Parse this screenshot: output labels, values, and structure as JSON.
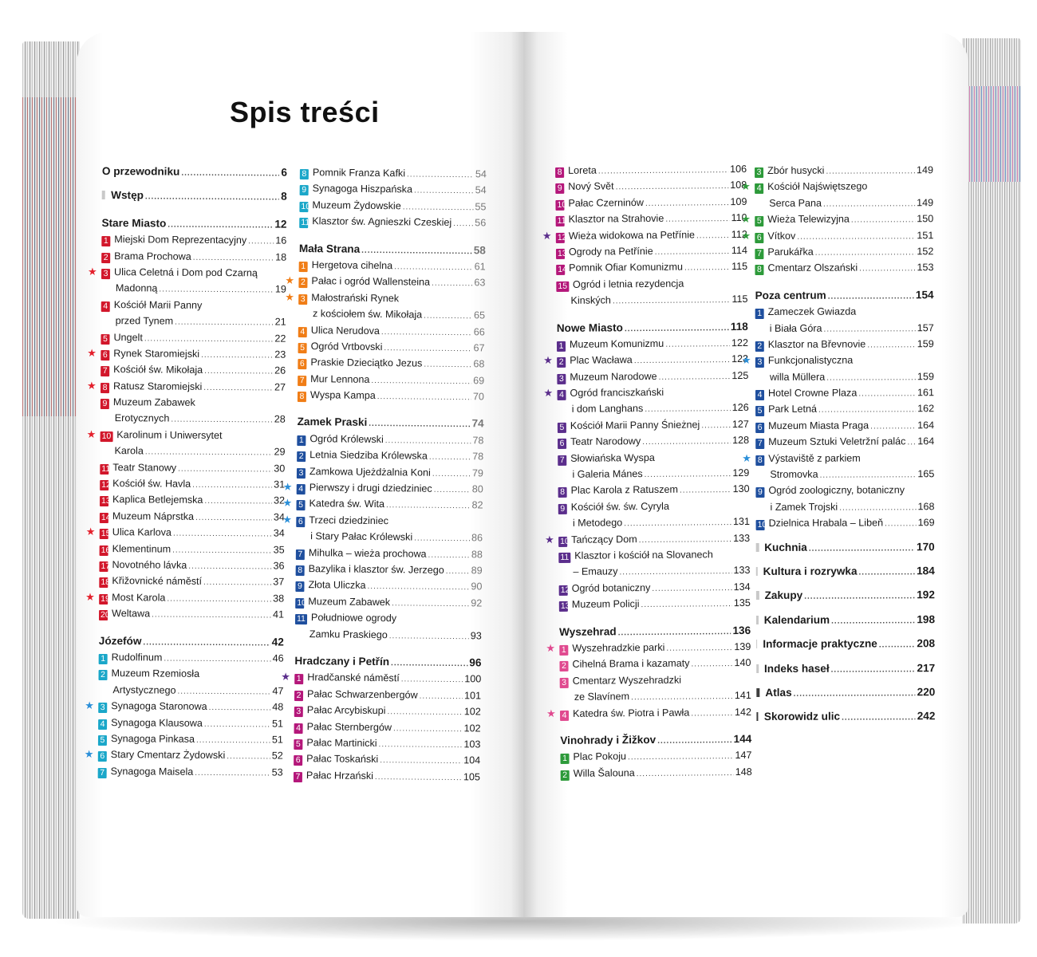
{
  "title": "Spis treści",
  "colors": {
    "red": "#d2172b",
    "teal": "#1aa7c9",
    "orange": "#f07d16",
    "blue": "#1f4f9e",
    "purple": "#5b2e8c",
    "magenta": "#b4177a",
    "pink": "#e0498f",
    "green": "#2d9a3a",
    "star_red": "#e4202c",
    "star_blue": "#2b8fd8",
    "star_orange": "#f07d16",
    "star_purple": "#5b2e8c",
    "star_pink": "#e0498f",
    "star_green": "#2d9a3a",
    "square_light": "#c9c9c9",
    "square_dark": "#3d3d3d"
  },
  "columns": [
    {
      "entries": [
        {
          "kind": "sec",
          "square": "none",
          "label": "O przewodniku",
          "page": "6"
        },
        {
          "kind": "sec",
          "square": "light",
          "label": "Wstęp",
          "page": "8"
        },
        {
          "kind": "chap",
          "label": "Stare Miasto",
          "page": "12"
        },
        {
          "num": "1",
          "color": "red",
          "label": "Miejski Dom Reprezentacyjny",
          "page": "16"
        },
        {
          "num": "2",
          "color": "red",
          "label": "Brama Prochowa",
          "page": "18"
        },
        {
          "num": "3",
          "color": "red",
          "star": "star_red",
          "label": "Ulica Celetná i Dom pod Czarną",
          "page": ""
        },
        {
          "cont": true,
          "label": "Madonną",
          "page": "19"
        },
        {
          "num": "4",
          "color": "red",
          "label": "Kościół Marii Panny",
          "page": ""
        },
        {
          "cont": true,
          "label": "przed Tynem",
          "page": "21"
        },
        {
          "num": "5",
          "color": "red",
          "label": "Ungelt",
          "page": "22"
        },
        {
          "num": "6",
          "color": "red",
          "star": "star_red",
          "label": "Rynek Staromiejski",
          "page": "23"
        },
        {
          "num": "7",
          "color": "red",
          "label": "Kościół św. Mikołaja",
          "page": "26"
        },
        {
          "num": "8",
          "color": "red",
          "star": "star_red",
          "label": "Ratusz Staromiejski",
          "page": "27"
        },
        {
          "num": "9",
          "color": "red",
          "label": "Muzeum Zabawek",
          "page": ""
        },
        {
          "cont": true,
          "label": "Erotycznych",
          "page": "28"
        },
        {
          "num": "10",
          "color": "red",
          "star": "star_red",
          "label": "Karolinum i Uniwersytet",
          "page": ""
        },
        {
          "cont": true,
          "label": "Karola",
          "page": "29"
        },
        {
          "num": "11",
          "color": "red",
          "label": "Teatr Stanowy",
          "page": "30"
        },
        {
          "num": "12",
          "color": "red",
          "label": "Kościół św. Havla",
          "page": "31"
        },
        {
          "num": "13",
          "color": "red",
          "label": "Kaplica Betlejemska",
          "page": "32"
        },
        {
          "num": "14",
          "color": "red",
          "label": "Muzeum Náprstka",
          "page": "34"
        },
        {
          "num": "15",
          "color": "red",
          "star": "star_red",
          "label": "Ulica Karlova",
          "page": "34"
        },
        {
          "num": "16",
          "color": "red",
          "label": "Klementinum",
          "page": "35"
        },
        {
          "num": "17",
          "color": "red",
          "label": "Novotného lávka",
          "page": "36"
        },
        {
          "num": "18",
          "color": "red",
          "label": "Křižovnické náměstí",
          "page": "37"
        },
        {
          "num": "19",
          "color": "red",
          "star": "star_red",
          "label": "Most Karola",
          "page": "38"
        },
        {
          "num": "20",
          "color": "red",
          "label": "Weltawa",
          "page": "41"
        },
        {
          "kind": "chap",
          "label": "Józefów",
          "page": "42"
        },
        {
          "num": "1",
          "color": "teal",
          "label": "Rudolfinum",
          "page": "46"
        },
        {
          "num": "2",
          "color": "teal",
          "label": "Muzeum Rzemiosła",
          "page": ""
        },
        {
          "cont": true,
          "label": "Artystycznego",
          "page": "47"
        },
        {
          "num": "3",
          "color": "teal",
          "star": "star_blue",
          "label": "Synagoga Staronowa",
          "page": "48"
        },
        {
          "num": "4",
          "color": "teal",
          "label": "Synagoga Klausowa",
          "page": "51"
        },
        {
          "num": "5",
          "color": "teal",
          "label": "Synagoga Pinkasa",
          "page": "51"
        },
        {
          "num": "6",
          "color": "teal",
          "star": "star_blue",
          "label": "Stary Cmentarz Żydowski",
          "page": "52"
        },
        {
          "num": "7",
          "color": "teal",
          "label": "Synagoga Maisela",
          "page": "53"
        }
      ]
    },
    {
      "entries": [
        {
          "num": "8",
          "color": "teal",
          "label": "Pomnik Franza Kafki",
          "page": "54",
          "muted": true
        },
        {
          "num": "9",
          "color": "teal",
          "label": "Synagoga Hiszpańska",
          "page": "54",
          "muted": true
        },
        {
          "num": "10",
          "color": "teal",
          "label": "Muzeum Żydowskie",
          "page": "55",
          "muted": true
        },
        {
          "num": "11",
          "color": "teal",
          "label": "Klasztor św. Agnieszki Czeskiej",
          "page": "56",
          "muted": true
        },
        {
          "kind": "chap",
          "label": "Mała Strana",
          "page": "58",
          "muted": true
        },
        {
          "num": "1",
          "color": "orange",
          "label": "Hergetova cihelna",
          "page": "61",
          "muted": true
        },
        {
          "num": "2",
          "color": "orange",
          "star": "star_orange",
          "label": "Pałac i ogród Wallensteina",
          "page": "63",
          "muted": true
        },
        {
          "num": "3",
          "color": "orange",
          "star": "star_orange",
          "label": "Małostrański Rynek",
          "page": ""
        },
        {
          "cont": true,
          "label": "z kościołem św. Mikołaja",
          "page": "65",
          "muted": true
        },
        {
          "num": "4",
          "color": "orange",
          "label": "Ulica Nerudova",
          "page": "66",
          "muted": true
        },
        {
          "num": "5",
          "color": "orange",
          "label": "Ogród Vrtbovski",
          "page": "67",
          "muted": true
        },
        {
          "num": "6",
          "color": "orange",
          "label": "Praskie Dzieciątko Jezus",
          "page": "68",
          "muted": true
        },
        {
          "num": "7",
          "color": "orange",
          "label": "Mur Lennona",
          "page": "69",
          "muted": true
        },
        {
          "num": "8",
          "color": "orange",
          "label": "Wyspa Kampa",
          "page": "70",
          "muted": true
        },
        {
          "kind": "chap",
          "label": "Zamek Praski",
          "page": "74",
          "muted": true
        },
        {
          "num": "1",
          "color": "blue",
          "label": "Ogród Królewski",
          "page": "78",
          "muted": true
        },
        {
          "num": "2",
          "color": "blue",
          "label": "Letnia Siedziba Królewska",
          "page": "78",
          "muted": true
        },
        {
          "num": "3",
          "color": "blue",
          "label": "Zamkowa Ujeżdżalnia Koni",
          "page": "79",
          "muted": true
        },
        {
          "num": "4",
          "color": "blue",
          "star": "star_blue",
          "label": "Pierwszy i drugi dziedziniec",
          "page": "80",
          "muted": true
        },
        {
          "num": "5",
          "color": "blue",
          "star": "star_blue",
          "label": "Katedra św. Wita",
          "page": "82",
          "muted": true
        },
        {
          "num": "6",
          "color": "blue",
          "star": "star_blue",
          "label": "Trzeci dziedziniec",
          "page": ""
        },
        {
          "cont": true,
          "label": "i Stary Pałac Królewski",
          "page": "86",
          "muted": true
        },
        {
          "num": "7",
          "color": "blue",
          "label": "Mihulka – wieża prochowa",
          "page": "88",
          "muted": true
        },
        {
          "num": "8",
          "color": "blue",
          "label": "Bazylika i klasztor św. Jerzego",
          "page": "89",
          "muted": true
        },
        {
          "num": "9",
          "color": "blue",
          "label": "Złota Uliczka",
          "page": "90",
          "muted": true
        },
        {
          "num": "10",
          "color": "blue",
          "label": "Muzeum Zabawek",
          "page": "92",
          "muted": true
        },
        {
          "num": "11",
          "color": "blue",
          "label": "Południowe ogrody",
          "page": ""
        },
        {
          "cont": true,
          "label": "Zamku Praskiego",
          "page": "93"
        },
        {
          "kind": "chap",
          "label": "Hradczany i Petřín",
          "page": "96"
        },
        {
          "num": "1",
          "color": "magenta",
          "star": "star_purple",
          "label": "Hradčanské náměstí",
          "page": "100"
        },
        {
          "num": "2",
          "color": "magenta",
          "label": "Pałac Schwarzenbergów",
          "page": "101"
        },
        {
          "num": "3",
          "color": "magenta",
          "label": "Pałac Arcybiskupi",
          "page": "102"
        },
        {
          "num": "4",
          "color": "magenta",
          "label": "Pałac Sternbergów",
          "page": "102"
        },
        {
          "num": "5",
          "color": "magenta",
          "label": "Pałac Martinicki",
          "page": "103"
        },
        {
          "num": "6",
          "color": "magenta",
          "label": "Pałac Toskański",
          "page": "104"
        },
        {
          "num": "7",
          "color": "magenta",
          "label": "Pałac Hrzański",
          "page": "105"
        }
      ]
    },
    {
      "entries": [
        {
          "num": "8",
          "color": "magenta",
          "label": "Loreta",
          "page": "106"
        },
        {
          "num": "9",
          "color": "magenta",
          "label": "Nový Svět",
          "page": "108"
        },
        {
          "num": "10",
          "color": "magenta",
          "label": "Pałac Czerninów",
          "page": "109"
        },
        {
          "num": "11",
          "color": "magenta",
          "label": "Klasztor na Strahovie",
          "page": "110"
        },
        {
          "num": "12",
          "color": "magenta",
          "star": "star_purple",
          "label": "Wieża widokowa na Petřínie",
          "page": "112"
        },
        {
          "num": "13",
          "color": "magenta",
          "label": "Ogrody na Petřínie",
          "page": "114"
        },
        {
          "num": "14",
          "color": "magenta",
          "label": "Pomnik Ofiar Komunizmu",
          "page": "115"
        },
        {
          "num": "15",
          "color": "magenta",
          "label": "Ogród i letnia rezydencja",
          "page": ""
        },
        {
          "cont": true,
          "label": "Kinských",
          "page": "115"
        },
        {
          "kind": "chap",
          "label": "Nowe Miasto",
          "page": "118"
        },
        {
          "num": "1",
          "color": "purple",
          "label": "Muzeum Komunizmu",
          "page": "122"
        },
        {
          "num": "2",
          "color": "purple",
          "star": "star_purple",
          "label": "Plac Wacława",
          "page": "123"
        },
        {
          "num": "3",
          "color": "purple",
          "label": "Muzeum Narodowe",
          "page": "125"
        },
        {
          "num": "4",
          "color": "purple",
          "star": "star_purple",
          "label": "Ogród franciszkański",
          "page": ""
        },
        {
          "cont": true,
          "label": "i dom Langhans",
          "page": "126"
        },
        {
          "num": "5",
          "color": "purple",
          "label": "Kościół Marii Panny Śnieżnej",
          "page": "127"
        },
        {
          "num": "6",
          "color": "purple",
          "label": "Teatr Narodowy",
          "page": "128"
        },
        {
          "num": "7",
          "color": "purple",
          "label": "Słowiańska Wyspa",
          "page": ""
        },
        {
          "cont": true,
          "label": "i Galeria Mánes",
          "page": "129"
        },
        {
          "num": "8",
          "color": "purple",
          "label": "Plac Karola z Ratuszem",
          "page": "130"
        },
        {
          "num": "9",
          "color": "purple",
          "label": "Kościół św. św. Cyryla",
          "page": ""
        },
        {
          "cont": true,
          "label": "i Metodego",
          "page": "131"
        },
        {
          "num": "10",
          "color": "purple",
          "star": "star_purple",
          "label": "Tańczący Dom",
          "page": "133"
        },
        {
          "num": "11",
          "color": "purple",
          "label": "Klasztor i kościół na Slovanech",
          "page": ""
        },
        {
          "cont": true,
          "label": "– Emauzy",
          "page": "133"
        },
        {
          "num": "12",
          "color": "purple",
          "label": "Ogród botaniczny",
          "page": "134"
        },
        {
          "num": "13",
          "color": "purple",
          "label": "Muzeum Policji",
          "page": "135"
        },
        {
          "kind": "chap",
          "label": "Wyszehrad",
          "page": "136"
        },
        {
          "num": "1",
          "color": "pink",
          "star": "star_pink",
          "label": "Wyszehradzkie parki",
          "page": "139"
        },
        {
          "num": "2",
          "color": "pink",
          "label": "Cihelná Brama i kazamaty",
          "page": "140"
        },
        {
          "num": "3",
          "color": "pink",
          "label": "Cmentarz Wyszehradzki",
          "page": ""
        },
        {
          "cont": true,
          "label": "ze Slavínem",
          "page": "141"
        },
        {
          "num": "4",
          "color": "pink",
          "star": "star_pink",
          "label": "Katedra św. Piotra i Pawła",
          "page": "142"
        },
        {
          "kind": "chap",
          "label": "Vinohrady i Žižkov",
          "page": "144"
        },
        {
          "num": "1",
          "color": "green",
          "label": "Plac Pokoju",
          "page": "147"
        },
        {
          "num": "2",
          "color": "green",
          "label": "Willa Šalouna",
          "page": "148"
        }
      ]
    },
    {
      "entries": [
        {
          "num": "3",
          "color": "green",
          "label": "Zbór husycki",
          "page": "149"
        },
        {
          "num": "4",
          "color": "green",
          "star": "star_green",
          "label": "Kościół Najświętszego",
          "page": ""
        },
        {
          "cont": true,
          "label": "Serca Pana",
          "page": "149"
        },
        {
          "num": "5",
          "color": "green",
          "star": "star_green",
          "label": "Wieża Telewizyjna",
          "page": "150"
        },
        {
          "num": "6",
          "color": "green",
          "star": "star_green",
          "label": "Vítkov",
          "page": "151"
        },
        {
          "num": "7",
          "color": "green",
          "label": "Parukářka",
          "page": "152"
        },
        {
          "num": "8",
          "color": "green",
          "label": "Cmentarz Olszański",
          "page": "153"
        },
        {
          "kind": "chap",
          "label": "Poza centrum",
          "page": "154"
        },
        {
          "num": "1",
          "color": "blue",
          "label": "Zameczek Gwiazda",
          "page": ""
        },
        {
          "cont": true,
          "label": "i Biała Góra",
          "page": "157"
        },
        {
          "num": "2",
          "color": "blue",
          "label": "Klasztor na Břevnovie",
          "page": "159"
        },
        {
          "num": "3",
          "color": "blue",
          "star": "star_blue",
          "label": "Funkcjonalistyczna",
          "page": ""
        },
        {
          "cont": true,
          "label": "willa Müllera",
          "page": "159"
        },
        {
          "num": "4",
          "color": "blue",
          "label": "Hotel Crowne Plaza",
          "page": "161"
        },
        {
          "num": "5",
          "color": "blue",
          "label": "Park Letná",
          "page": "162"
        },
        {
          "num": "6",
          "color": "blue",
          "label": "Muzeum Miasta Praga",
          "page": "164"
        },
        {
          "num": "7",
          "color": "blue",
          "label": "Muzeum Sztuki Veletržní palác",
          "page": "164"
        },
        {
          "num": "8",
          "color": "blue",
          "star": "star_blue",
          "label": "Výstaviště z parkiem",
          "page": ""
        },
        {
          "cont": true,
          "label": "Stromovka",
          "page": "165"
        },
        {
          "num": "9",
          "color": "blue",
          "label": "Ogród zoologiczny, botaniczny",
          "page": ""
        },
        {
          "cont": true,
          "label": "i Zamek Trojski",
          "page": "168"
        },
        {
          "num": "10",
          "color": "blue",
          "label": "Dzielnica Hrabala – Libeň",
          "page": "169"
        },
        {
          "kind": "sec",
          "square": "light",
          "label": "Kuchnia",
          "page": "170"
        },
        {
          "kind": "sec",
          "square": "light",
          "label": "Kultura i rozrywka",
          "page": "184"
        },
        {
          "kind": "sec",
          "square": "light",
          "label": "Zakupy",
          "page": "192"
        },
        {
          "kind": "sec",
          "square": "light",
          "label": "Kalendarium",
          "page": "198"
        },
        {
          "kind": "sec",
          "square": "light",
          "label": "Informacje praktyczne",
          "page": "208"
        },
        {
          "kind": "sec",
          "square": "light",
          "label": "Indeks haseł",
          "page": "217"
        },
        {
          "kind": "sec",
          "square": "dark",
          "label": "Atlas",
          "page": "220"
        },
        {
          "kind": "sec",
          "square": "dark",
          "label": "Skorowidz ulic",
          "page": "242"
        }
      ]
    }
  ]
}
